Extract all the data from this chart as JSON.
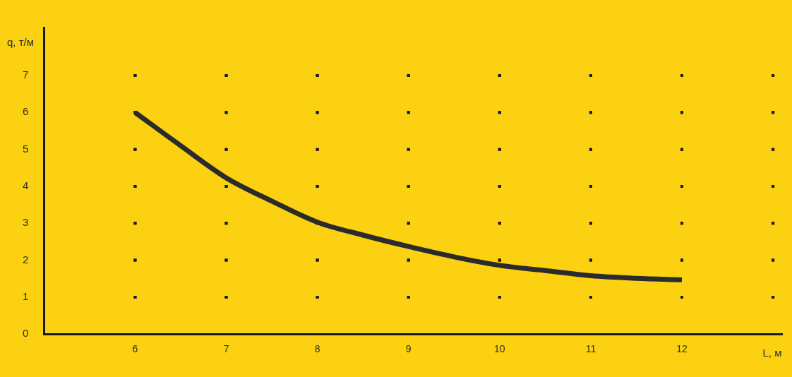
{
  "chart_data": {
    "type": "line",
    "xlabel": "L, м",
    "ylabel": "q, т/м",
    "x": [
      6,
      6.5,
      7,
      7.5,
      8,
      8.5,
      9,
      9.5,
      10,
      10.5,
      11,
      11.5,
      12
    ],
    "series": [
      {
        "color": "#2b2b2b",
        "values": [
          6,
          5.1,
          4.23,
          3.6,
          3.03,
          2.68,
          2.37,
          2.09,
          1.86,
          1.72,
          1.58,
          1.51,
          1.47
        ]
      }
    ],
    "xlim": [
      5,
      13.1
    ],
    "xticks": [
      6,
      7,
      8,
      9,
      10,
      11,
      12,
      {
        "value": 13,
        "label": null
      }
    ],
    "ylim": [
      0,
      8.3
    ],
    "yticks": [
      0,
      1,
      2,
      3,
      4,
      5,
      6,
      7
    ],
    "grid": true,
    "legend": false,
    "marker": "none",
    "line_style": "solid"
  }
}
